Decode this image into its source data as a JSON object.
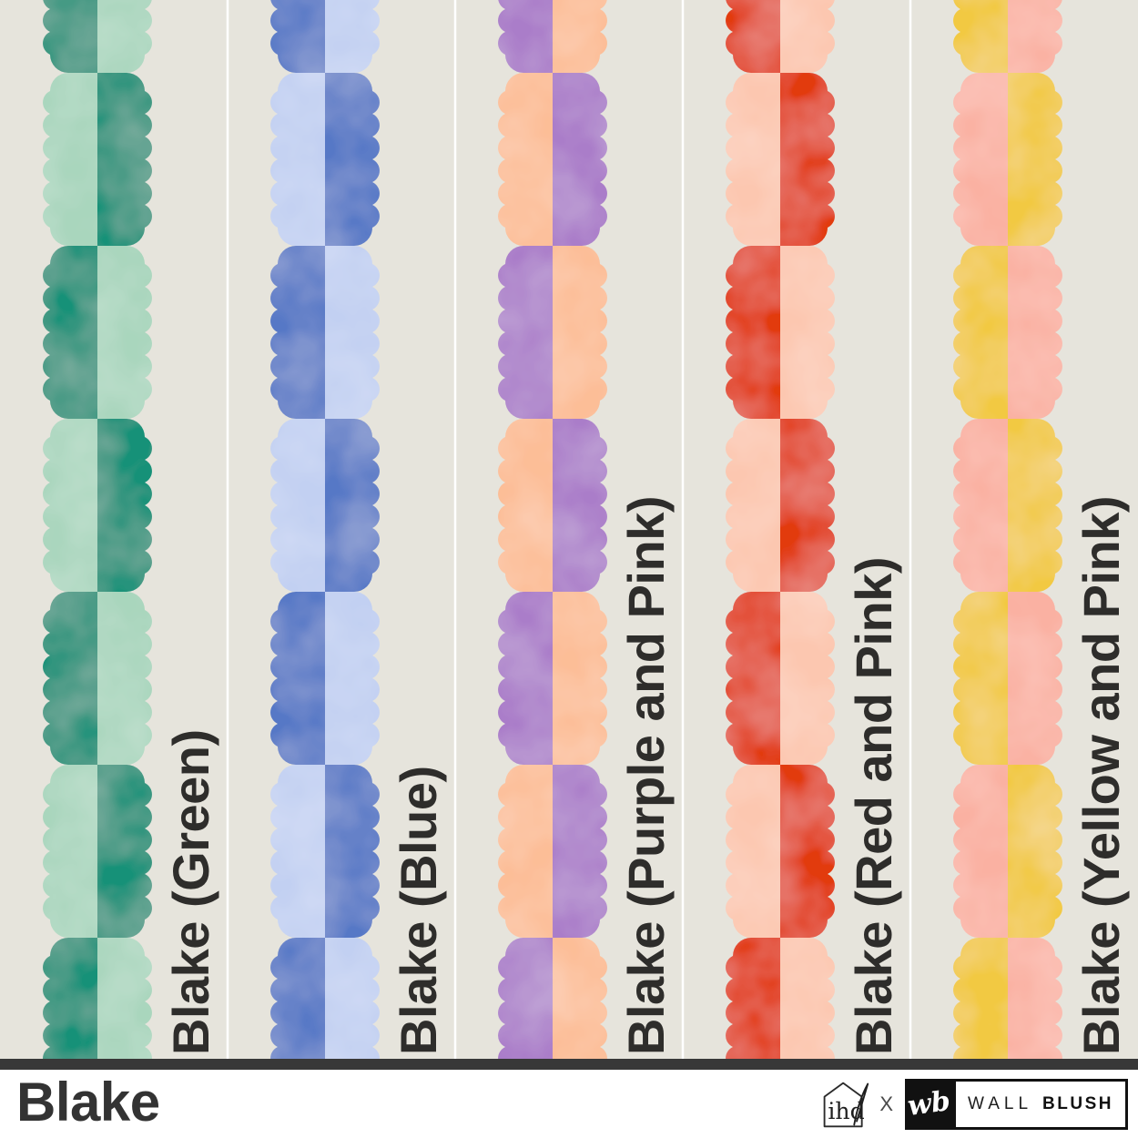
{
  "title": "Blake",
  "background_color": "#e6e4dc",
  "separator_color": "#ffffff",
  "bar_color": "#383838",
  "label_color": "#2e2d2b",
  "columns": [
    {
      "label": "Blake (Green)",
      "dark": "#169178",
      "light": "#a9d6bd"
    },
    {
      "label": "Blake (Blue)",
      "dark": "#5678c6",
      "light": "#c2d0f2"
    },
    {
      "label": "Blake (Purple and Pink)",
      "dark": "#aa7dc9",
      "light": "#fcbe97"
    },
    {
      "label": "Blake (Red and Pink)",
      "dark": "#e23a10",
      "light": "#fcc7b0"
    },
    {
      "label": "Blake (Yellow and Pink)",
      "dark": "#f2c943",
      "light": "#fab1a2"
    }
  ],
  "footer": {
    "title": "Blake",
    "ihd_logo_text": "ihd",
    "collab_x": "X",
    "wb_monogram": "wb",
    "brand_word1": "WALL",
    "brand_word2": "BLUSH"
  }
}
